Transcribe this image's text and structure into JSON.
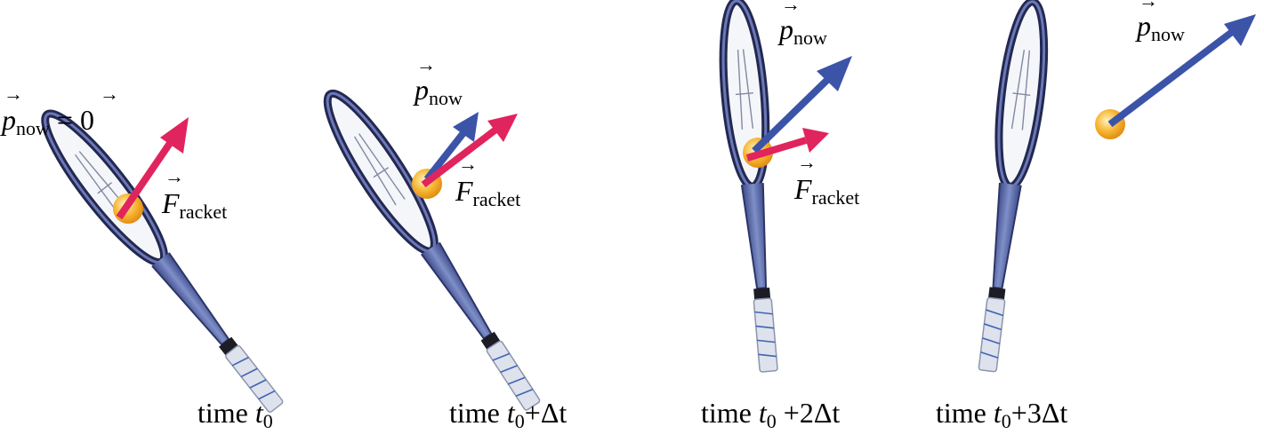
{
  "panels": [
    {
      "time_word": "time",
      "time_var": "t",
      "time_sub": "0",
      "time_suffix": "",
      "p_symbol": "p",
      "p_sub": "now",
      "p_tail": " = 0",
      "f_symbol": "F",
      "f_sub": "racket"
    },
    {
      "time_word": "time",
      "time_var": "t",
      "time_sub": "0",
      "time_suffix": "+Δt",
      "p_symbol": "p",
      "p_sub": "now",
      "f_symbol": "F",
      "f_sub": "racket"
    },
    {
      "time_word": "time",
      "time_var": "t",
      "time_sub": "0",
      "time_suffix": " +2Δt",
      "p_symbol": "p",
      "p_sub": "now",
      "f_symbol": "F",
      "f_sub": "racket"
    },
    {
      "time_word": "time",
      "time_var": "t",
      "time_sub": "0",
      "time_suffix": "+3Δt",
      "p_symbol": "p",
      "p_sub": "now"
    }
  ],
  "colors": {
    "momentum_arrow": "#3b54a8",
    "force_arrow": "#e0245e",
    "ball": "#f5a623",
    "racket_frame": "#2c3566",
    "grip": "#d9dde6"
  }
}
